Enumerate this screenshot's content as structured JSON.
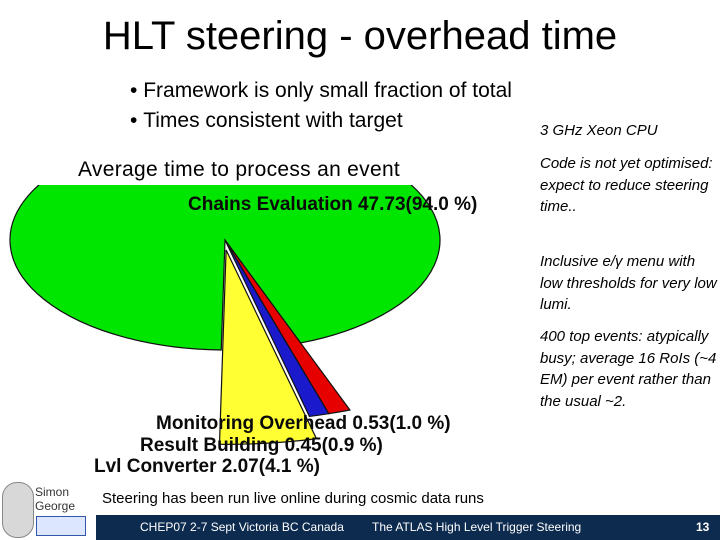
{
  "slide": {
    "title": "HLT steering - overhead time",
    "bullets": [
      "Framework is only small fraction of total",
      "Times consistent with target"
    ],
    "subtitle": "Average time to process an event"
  },
  "side_notes": {
    "cpu": "3 GHz Xeon CPU",
    "note1": "Code is not yet optimised: expect to reduce steering time..",
    "note2": "Inclusive e/γ menu with low thresholds for very low lumi.",
    "note3": "400 top events: atypically busy; average 16 RoIs (~4 EM) per event rather than the usual ~2."
  },
  "chart_data": {
    "type": "pie",
    "slices": [
      {
        "label": "Chains Evaluation",
        "value": 47.73,
        "percent": 94.0,
        "color": "#00e600"
      },
      {
        "label": "Monitoring Overhead",
        "value": 0.53,
        "percent": 1.0,
        "color": "#e60000"
      },
      {
        "label": "Result Building",
        "value": 0.45,
        "percent": 0.9,
        "color": "#1a1acc"
      },
      {
        "label": "Lvl Converter",
        "value": 2.07,
        "percent": 4.1,
        "color": "#ffff33"
      }
    ],
    "labels": {
      "chains": "Chains Evaluation 47.73(94.0 %)",
      "monitoring": "Monitoring Overhead 0.53(1.0 %)",
      "result": "Result Building 0.45(0.9 %)",
      "lvl": "Lvl Converter 2.07(4.1 %)"
    }
  },
  "footer": {
    "note": "Steering has been run live online during cosmic data runs",
    "conference": "CHEP07 2-7 Sept Victoria BC Canada",
    "talk": "The ATLAS High Level Trigger Steering",
    "page": "13"
  },
  "logo": {
    "line1": "Simon",
    "line2": "George"
  }
}
